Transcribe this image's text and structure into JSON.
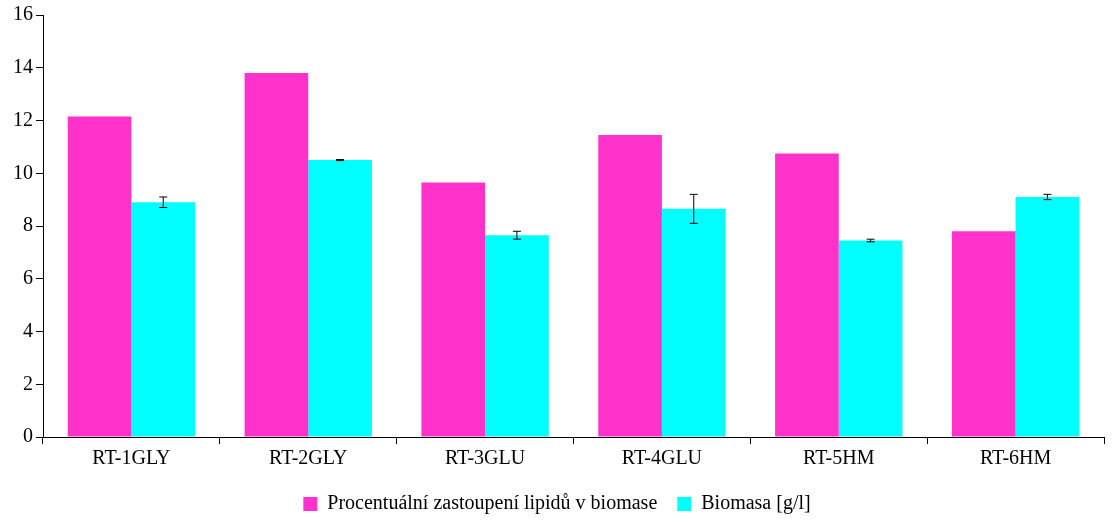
{
  "chart_data": {
    "type": "bar",
    "categories": [
      "RT-1GLY",
      "RT-2GLY",
      "RT-3GLU",
      "RT-4GLU",
      "RT-5HM",
      "RT-6HM"
    ],
    "series": [
      {
        "name": "Procentuální zastoupení lipidů v biomase",
        "color": "#ff33cc",
        "values": [
          12.15,
          13.8,
          9.65,
          11.45,
          10.75,
          7.8
        ]
      },
      {
        "name": "Biomasa [g/l]",
        "color": "#00ffff",
        "values": [
          8.9,
          10.5,
          7.65,
          8.65,
          7.45,
          9.1
        ],
        "errors": [
          0.2,
          0.02,
          0.15,
          0.55,
          0.05,
          0.1
        ]
      }
    ],
    "ylim": [
      0,
      16
    ],
    "yticks": [
      0,
      2,
      4,
      6,
      8,
      10,
      12,
      14,
      16
    ],
    "grid": false,
    "legend": "bottom"
  }
}
